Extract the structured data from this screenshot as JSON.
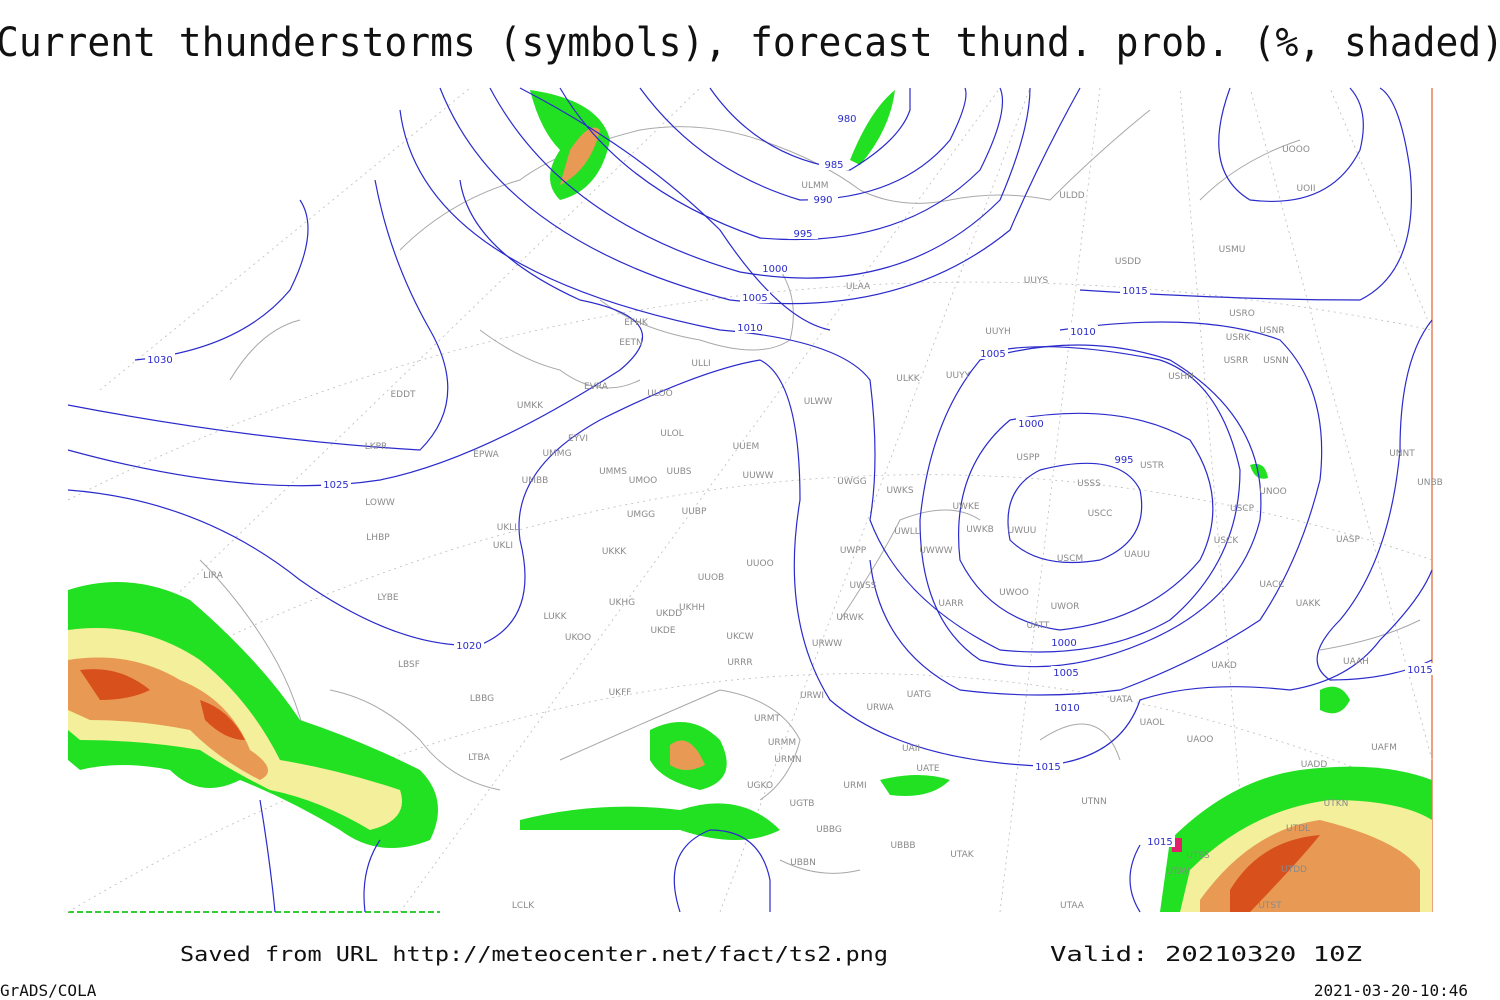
{
  "header": {
    "title": "Current thunderstorms (symbols), forecast thund. prob. (%, shaded)"
  },
  "isobar_labels": [
    980,
    985,
    990,
    995,
    1000,
    1005,
    1010,
    1030,
    1025,
    1020,
    1015,
    1010,
    1005,
    1000,
    995,
    1000,
    1005,
    1010,
    1015,
    1015,
    1015
  ],
  "stations": [
    "ULMM",
    "ULDD",
    "UOOO",
    "UOII",
    "USDD",
    "USMU",
    "UUYS",
    "ULAA",
    "USRO",
    "USRK",
    "USNR",
    "UUYH",
    "USRR",
    "USNN",
    "EFHK",
    "EETN",
    "ULLI",
    "ULKK",
    "UUYY",
    "USHH",
    "EVRA",
    "ULOO",
    "EDDT",
    "UMKK",
    "ULWW",
    "EYVI",
    "ULOL",
    "UUEM",
    "LKPR",
    "EPWA",
    "UMMG",
    "USPP",
    "USTR",
    "UNNT",
    "UMMS",
    "UUBS",
    "UMOO",
    "UUWW",
    "UWGG",
    "UMBB",
    "USSS",
    "UNOO",
    "UNBB",
    "UWKS",
    "LOWW",
    "USCC",
    "UUBP",
    "UMGG",
    "UWKE",
    "USCP",
    "UKLL",
    "UWUU",
    "UWKB",
    "UWLL",
    "UKLI",
    "LHBP",
    "USCK",
    "UASP",
    "UKKK",
    "UWPP",
    "UWWW",
    "UAUU",
    "USCM",
    "UUOO",
    "LIRA",
    "UUOB",
    "UWSS",
    "UACC",
    "LYBE",
    "UWOO",
    "UKHG",
    "UKDD",
    "UKHH",
    "UARR",
    "UWOR",
    "UAKK",
    "LUKK",
    "URWK",
    "UATT",
    "UKOO",
    "UKDE",
    "UKCW",
    "URWW",
    "LBSF",
    "URRR",
    "UAKD",
    "UAAH",
    "UKFF",
    "LBBG",
    "URWI",
    "UATG",
    "UATA",
    "URWA",
    "URMT",
    "UAOL",
    "URMM",
    "UAOO",
    "UAFM",
    "URMN",
    "LTBA",
    "UATE",
    "UAII",
    "UADD",
    "UGKO",
    "URMI",
    "UGTB",
    "UTNN",
    "UTKN",
    "UBBG",
    "UTDL",
    "UBBB",
    "UTAK",
    "UBBN",
    "UTSS",
    "UTAV",
    "UTDD",
    "UTAA",
    "LCLK",
    "UTST"
  ],
  "footer": {
    "saved": "Saved from URL http://meteocenter.net/fact/ts2.png",
    "valid": "Valid: 20210320 10Z",
    "software": "GrADS/COLA",
    "timestamp": "2021-03-20-10:46"
  }
}
